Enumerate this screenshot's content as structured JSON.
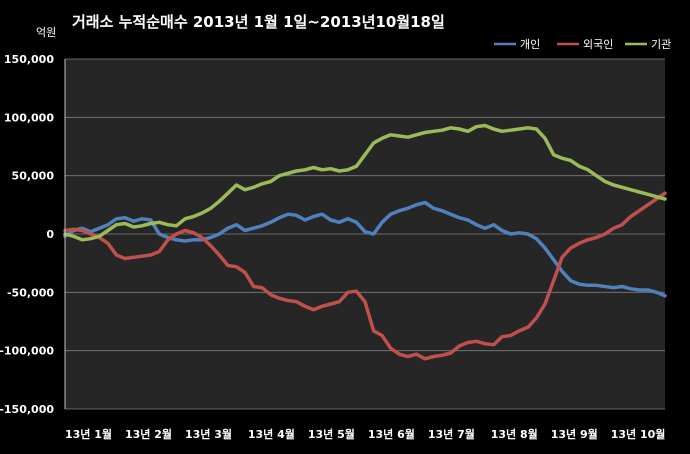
{
  "chart_data": {
    "type": "line",
    "title": "거래소  누적순매수 2013년 1월 1일~2013년10월18일",
    "unit_label": "억원",
    "ylim": [
      -150000,
      150000
    ],
    "yticks": [
      150000,
      100000,
      50000,
      0,
      -50000,
      -100000,
      -150000
    ],
    "ytick_labels": [
      "150,000",
      "100,000",
      "50,000",
      "0",
      "-50,000",
      "-100,000",
      "-150,000"
    ],
    "xlim": [
      0,
      210
    ],
    "xtick_values": [
      0,
      21,
      42,
      64,
      85,
      106,
      127,
      149,
      170,
      191
    ],
    "xtick_labels": [
      "13년 1월",
      "13년 2월",
      "13년 3월",
      "13년 4월",
      "13년 5월",
      "13년 6월",
      "13년 7월",
      "13년 8월",
      "13년 9월",
      "13년 10월"
    ],
    "grid": true,
    "legend_position": "top-right",
    "x": [
      0,
      3,
      6,
      9,
      12,
      15,
      18,
      21,
      24,
      27,
      30,
      33,
      36,
      39,
      42,
      45,
      48,
      51,
      54,
      57,
      60,
      63,
      66,
      69,
      72,
      75,
      78,
      81,
      84,
      87,
      90,
      93,
      96,
      99,
      102,
      105,
      108,
      111,
      114,
      117,
      120,
      123,
      126,
      129,
      132,
      135,
      138,
      141,
      144,
      147,
      150,
      153,
      156,
      159,
      162,
      165,
      168,
      171,
      174,
      177,
      180,
      183,
      186,
      189,
      192,
      195,
      198,
      201,
      204,
      207,
      210
    ],
    "series": [
      {
        "name": "개인",
        "color": "#4f81bd",
        "values": [
          -2000,
          3000,
          5000,
          2000,
          5000,
          8000,
          13000,
          14000,
          11000,
          13000,
          12000,
          0,
          -3000,
          -5000,
          -6000,
          -5000,
          -5000,
          -3000,
          0,
          5000,
          8000,
          3000,
          5000,
          7000,
          10000,
          14000,
          17000,
          16000,
          12000,
          15000,
          17000,
          12000,
          10000,
          13000,
          10000,
          2000,
          0,
          10000,
          17000,
          20000,
          22000,
          25000,
          27000,
          22000,
          20000,
          17000,
          14000,
          12000,
          8000,
          5000,
          8000,
          3000,
          0,
          1000,
          0,
          -4000,
          -12000,
          -22000,
          -32000,
          -40000,
          -43000,
          -44000,
          -44000,
          -45000,
          -46000,
          -45000,
          -47000,
          -48000,
          -48000,
          -50000,
          -53000
        ]
      },
      {
        "name": "외국인",
        "color": "#c0504d",
        "values": [
          3000,
          4000,
          3000,
          0,
          -3000,
          -8000,
          -18000,
          -21000,
          -20000,
          -19000,
          -18000,
          -15000,
          -5000,
          0,
          3000,
          1000,
          -3000,
          -10000,
          -18000,
          -27000,
          -28000,
          -33000,
          -45000,
          -46000,
          -52000,
          -55000,
          -57000,
          -58000,
          -62000,
          -65000,
          -62000,
          -60000,
          -58000,
          -50000,
          -49000,
          -58000,
          -83000,
          -87000,
          -98000,
          -103000,
          -105000,
          -103000,
          -107000,
          -105000,
          -104000,
          -102000,
          -96000,
          -93000,
          -92000,
          -94000,
          -95000,
          -88000,
          -87000,
          -83000,
          -80000,
          -72000,
          -60000,
          -40000,
          -20000,
          -12000,
          -8000,
          -5000,
          -3000,
          0,
          5000,
          8000,
          15000,
          20000,
          25000,
          30000,
          35000
        ]
      },
      {
        "name": "기관",
        "color": "#9bbb59",
        "values": [
          0,
          -2000,
          -5000,
          -4000,
          -2000,
          3000,
          8000,
          9000,
          6000,
          7000,
          9000,
          10000,
          8000,
          7000,
          13000,
          15000,
          18000,
          22000,
          28000,
          35000,
          42000,
          38000,
          40000,
          43000,
          45000,
          50000,
          52000,
          54000,
          55000,
          57000,
          55000,
          56000,
          54000,
          55000,
          58000,
          68000,
          78000,
          82000,
          85000,
          84000,
          83000,
          85000,
          87000,
          88000,
          89000,
          91000,
          90000,
          88000,
          92000,
          93000,
          90000,
          88000,
          89000,
          90000,
          91000,
          90000,
          82000,
          68000,
          65000,
          63000,
          58000,
          55000,
          50000,
          45000,
          42000,
          40000,
          38000,
          36000,
          34000,
          32000,
          30000
        ]
      }
    ]
  }
}
